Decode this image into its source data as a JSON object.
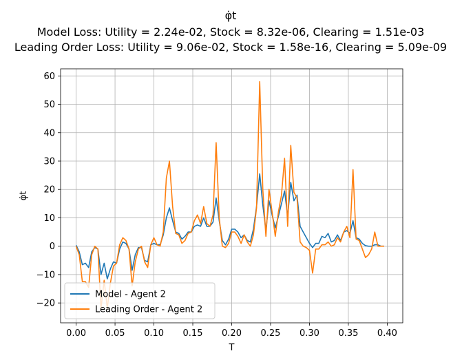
{
  "chart_data": {
    "type": "line",
    "title": "φ̇t",
    "subtitle_lines": [
      "Model Loss: Utility = 2.24e-02, Stock = 8.32e-06, Clearing = 1.51e-03",
      "Leading Order Loss: Utility = 9.06e-02, Stock = 1.58e-16, Clearing = 5.09e-09"
    ],
    "xlabel": "T",
    "ylabel": "φ̇t",
    "xlim": [
      -0.02,
      0.42
    ],
    "ylim": [
      -27,
      62.5
    ],
    "xticks": [
      0.0,
      0.05,
      0.1,
      0.15,
      0.2,
      0.25,
      0.3,
      0.35,
      0.4
    ],
    "xtick_labels": [
      "0.00",
      "0.05",
      "0.10",
      "0.15",
      "0.20",
      "0.25",
      "0.30",
      "0.35",
      "0.40"
    ],
    "yticks": [
      -20,
      -10,
      0,
      10,
      20,
      30,
      40,
      50,
      60
    ],
    "ytick_labels": [
      "−20",
      "−10",
      "0",
      "10",
      "20",
      "30",
      "40",
      "50",
      "60"
    ],
    "grid": true,
    "legend_position": "lower-left",
    "series": [
      {
        "name": "Model - Agent 2",
        "color": "#1f77b4",
        "x": [
          0.0,
          0.004,
          0.008,
          0.012,
          0.016,
          0.02,
          0.024,
          0.028,
          0.032,
          0.036,
          0.04,
          0.044,
          0.048,
          0.052,
          0.056,
          0.06,
          0.064,
          0.068,
          0.072,
          0.076,
          0.08,
          0.084,
          0.088,
          0.092,
          0.096,
          0.1,
          0.104,
          0.108,
          0.112,
          0.116,
          0.12,
          0.124,
          0.128,
          0.132,
          0.136,
          0.14,
          0.144,
          0.148,
          0.152,
          0.156,
          0.16,
          0.164,
          0.168,
          0.172,
          0.176,
          0.18,
          0.184,
          0.188,
          0.192,
          0.196,
          0.2,
          0.204,
          0.208,
          0.212,
          0.216,
          0.22,
          0.224,
          0.228,
          0.232,
          0.236,
          0.24,
          0.244,
          0.248,
          0.252,
          0.256,
          0.26,
          0.264,
          0.268,
          0.272,
          0.276,
          0.28,
          0.284,
          0.288,
          0.292,
          0.296,
          0.3,
          0.304,
          0.308,
          0.312,
          0.316,
          0.32,
          0.324,
          0.328,
          0.332,
          0.336,
          0.34,
          0.344,
          0.348,
          0.352,
          0.356,
          0.36,
          0.364,
          0.368,
          0.372,
          0.376,
          0.38,
          0.384,
          0.388,
          0.392,
          0.396
        ],
        "y": [
          0.3,
          -2,
          -6.5,
          -6,
          -7.5,
          -2,
          -0.5,
          -1,
          -10,
          -6,
          -11.5,
          -8,
          -5.5,
          -6,
          -1,
          1.5,
          1,
          -1,
          -8.5,
          -3,
          -0.5,
          -0.5,
          -5,
          -5.5,
          0.5,
          1,
          0.5,
          0.5,
          4,
          10,
          13.5,
          9,
          5,
          4.5,
          2.5,
          3.5,
          5,
          5,
          7,
          7.5,
          7,
          10,
          7,
          7,
          8.5,
          17,
          9,
          2,
          0.5,
          2.5,
          6,
          6,
          5,
          3,
          4,
          2,
          1.5,
          6,
          14,
          25.5,
          14.5,
          5.5,
          16,
          11,
          6.5,
          10.5,
          15,
          19.5,
          10.5,
          22.5,
          16,
          18,
          7,
          5,
          3,
          1,
          -0.5,
          1,
          1,
          3.5,
          3,
          4.5,
          1.5,
          2,
          4,
          2,
          5,
          5.5,
          4.5,
          9,
          3,
          2.5,
          1,
          0.2,
          0,
          0,
          0.5,
          0.5,
          0,
          0
        ]
      },
      {
        "name": "Leading Order - Agent 2",
        "color": "#ff7f0e",
        "x": [
          0.0,
          0.004,
          0.008,
          0.012,
          0.016,
          0.02,
          0.024,
          0.028,
          0.032,
          0.036,
          0.04,
          0.044,
          0.048,
          0.052,
          0.056,
          0.06,
          0.064,
          0.068,
          0.072,
          0.076,
          0.08,
          0.084,
          0.088,
          0.092,
          0.096,
          0.1,
          0.104,
          0.108,
          0.112,
          0.116,
          0.12,
          0.124,
          0.128,
          0.132,
          0.136,
          0.14,
          0.144,
          0.148,
          0.152,
          0.156,
          0.16,
          0.164,
          0.168,
          0.172,
          0.176,
          0.18,
          0.184,
          0.188,
          0.192,
          0.196,
          0.2,
          0.204,
          0.208,
          0.212,
          0.216,
          0.22,
          0.224,
          0.228,
          0.232,
          0.236,
          0.24,
          0.244,
          0.248,
          0.252,
          0.256,
          0.26,
          0.264,
          0.268,
          0.272,
          0.276,
          0.28,
          0.284,
          0.288,
          0.292,
          0.296,
          0.3,
          0.304,
          0.308,
          0.312,
          0.316,
          0.32,
          0.324,
          0.328,
          0.332,
          0.336,
          0.34,
          0.344,
          0.348,
          0.352,
          0.356,
          0.36,
          0.364,
          0.368,
          0.372,
          0.376,
          0.38,
          0.384,
          0.388,
          0.392,
          0.396
        ],
        "y": [
          0,
          -3,
          -12.5,
          -12.5,
          -14.5,
          -3,
          0,
          -1,
          -22,
          -12,
          -22,
          -13,
          -7,
          -6,
          0.5,
          3,
          2,
          -1,
          -14,
          -5.5,
          -1,
          0,
          -5.5,
          -7.5,
          0.5,
          3,
          0.5,
          0,
          5,
          24,
          30,
          14,
          4.5,
          4,
          1,
          2,
          4.5,
          5,
          9,
          11,
          8,
          14,
          8,
          7,
          11,
          36.5,
          10,
          0,
          -0.5,
          1,
          5,
          5,
          3.5,
          1,
          4,
          1.5,
          0,
          4,
          13.5,
          58,
          20,
          3.5,
          20,
          12,
          3.5,
          12,
          18,
          31,
          7,
          35.5,
          19,
          17,
          1.5,
          0,
          -0.5,
          -1.5,
          -9.5,
          -1,
          -1,
          0.5,
          0.5,
          1.5,
          0,
          0.5,
          3,
          1.5,
          5,
          7,
          3,
          27,
          2.5,
          2,
          -1,
          -4,
          -3,
          -1,
          5,
          0,
          0,
          0
        ]
      }
    ]
  }
}
